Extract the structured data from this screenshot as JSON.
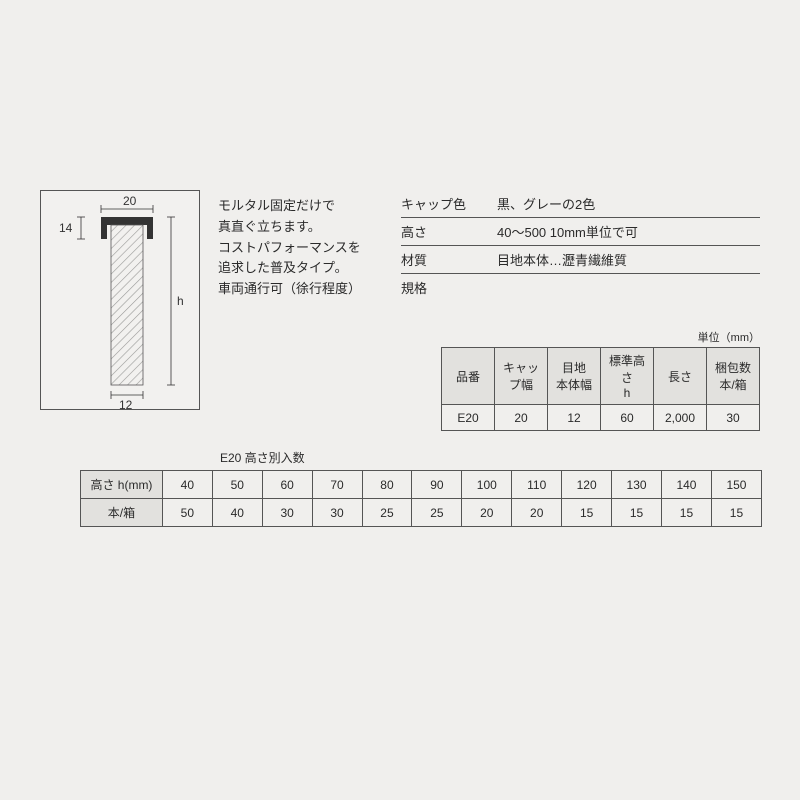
{
  "colors": {
    "page_bg": "#f0efed",
    "border": "#555555",
    "header_bg": "#e2e1de",
    "hatch": "#9a9a98",
    "text": "#2a2a2a"
  },
  "diagram": {
    "cap_width_label": "20",
    "cap_height_label": "14",
    "body_width_label": "12",
    "height_label": "h"
  },
  "description": {
    "line1": "モルタル固定だけで",
    "line2": "真直ぐ立ちます。",
    "line3": "コストパフォーマンスを",
    "line4": "追求した普及タイプ。",
    "line5": "車両通行可（徐行程度）"
  },
  "specs": {
    "cap_color_label": "キャップ色",
    "cap_color_value": "黒、グレーの2色",
    "height_label": "高さ",
    "height_value": "40〜500 10mm単位で可",
    "material_label": "材質",
    "material_value": "目地本体…瀝青繊維質",
    "kikaku_label": "規格",
    "unit_label": "単位（mm）"
  },
  "main_table": {
    "headers": {
      "c1": "品番",
      "c2": "キャップ幅",
      "c3": "目地\n本体幅",
      "c4": "標準高さ\nh",
      "c5": "長さ",
      "c6": "梱包数\n本/箱"
    },
    "row": {
      "c1": "E20",
      "c2": "20",
      "c3": "12",
      "c4": "60",
      "c5": "2,000",
      "c6": "30"
    }
  },
  "qty_table": {
    "title": "E20 高さ別入数",
    "row1_label": "高さ h(mm)",
    "row2_label": "本/箱",
    "heights": [
      "40",
      "50",
      "60",
      "70",
      "80",
      "90",
      "100",
      "110",
      "120",
      "130",
      "140",
      "150"
    ],
    "qty": [
      "50",
      "40",
      "30",
      "30",
      "25",
      "25",
      "20",
      "20",
      "15",
      "15",
      "15",
      "15"
    ]
  }
}
